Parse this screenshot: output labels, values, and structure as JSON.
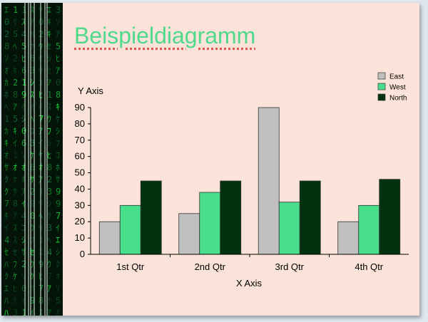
{
  "slide": {
    "title": "Beispieldiagramm"
  },
  "chart_data": {
    "type": "bar",
    "categories": [
      "1st Qtr",
      "2nd Qtr",
      "3rd Qtr",
      "4th Qtr"
    ],
    "series": [
      {
        "name": "East",
        "color": "#c0c0c0",
        "values": [
          20,
          25,
          90,
          20
        ]
      },
      {
        "name": "West",
        "color": "#48de8c",
        "values": [
          30,
          38,
          32,
          30
        ]
      },
      {
        "name": "North",
        "color": "#03320f",
        "values": [
          45,
          45,
          45,
          46
        ]
      }
    ],
    "xlabel": "X Axis",
    "ylabel": "Y Axis",
    "ylim": [
      0,
      90
    ],
    "yticks": [
      0,
      10,
      20,
      30,
      40,
      50,
      60,
      70,
      80,
      90
    ],
    "grid": false,
    "legend": "top-right"
  }
}
